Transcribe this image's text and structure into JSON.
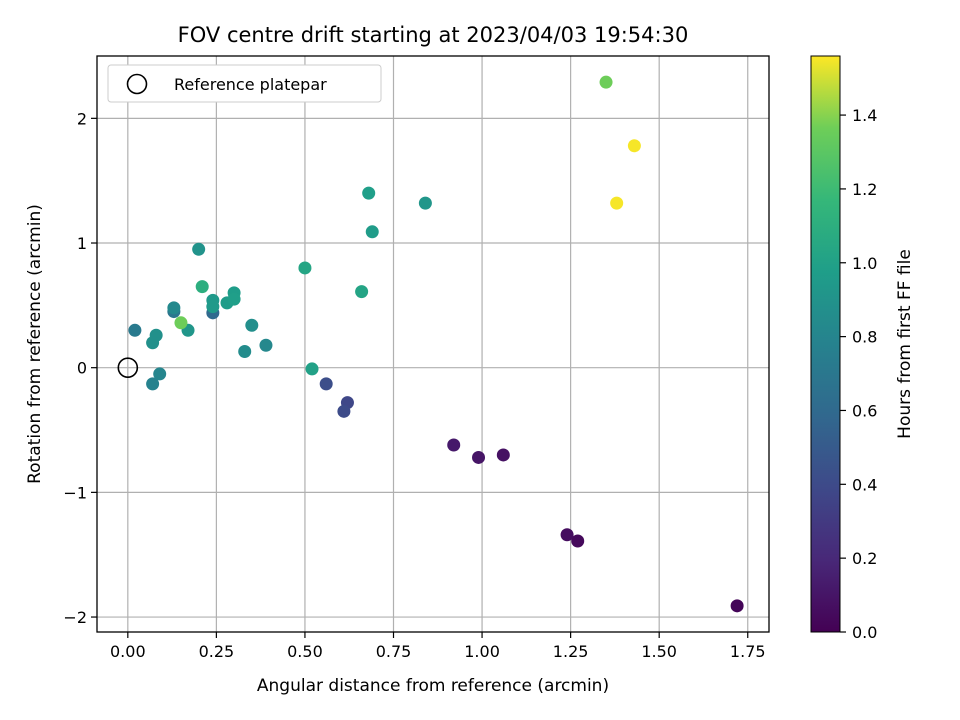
{
  "chart_data": {
    "type": "scatter",
    "title": "FOV centre drift starting at 2023/04/03 19:54:30",
    "xlabel": "Angular distance from reference (arcmin)",
    "ylabel": "Rotation from reference (arcmin)",
    "xlim": [
      -0.087,
      1.81
    ],
    "ylim": [
      -2.12,
      2.5
    ],
    "x_ticks": [
      "0.00",
      "0.25",
      "0.50",
      "0.75",
      "1.00",
      "1.25",
      "1.50",
      "1.75"
    ],
    "y_ticks": [
      "−2",
      "−1",
      "0",
      "1",
      "2"
    ],
    "grid": true,
    "legend": {
      "placement": "top-left",
      "entries": [
        "Reference platepar"
      ]
    },
    "reference_point": {
      "x": 0.0,
      "y": 0.0
    },
    "colorbar": {
      "label": "Hours from first FF file",
      "range": [
        0.0,
        1.56
      ],
      "colormap": "viridis",
      "ticks": [
        "0.0",
        "0.2",
        "0.4",
        "0.6",
        "0.8",
        "1.0",
        "1.2",
        "1.4"
      ]
    },
    "series": [
      {
        "points": [
          {
            "x": 1.72,
            "y": -1.91,
            "c": 0.02
          },
          {
            "x": 1.27,
            "y": -1.39,
            "c": 0.04
          },
          {
            "x": 1.24,
            "y": -1.34,
            "c": 0.06
          },
          {
            "x": 1.06,
            "y": -0.7,
            "c": 0.08
          },
          {
            "x": 0.99,
            "y": -0.72,
            "c": 0.1
          },
          {
            "x": 0.92,
            "y": -0.62,
            "c": 0.12
          },
          {
            "x": 0.62,
            "y": -0.28,
            "c": 0.38
          },
          {
            "x": 0.61,
            "y": -0.35,
            "c": 0.4
          },
          {
            "x": 0.56,
            "y": -0.13,
            "c": 0.42
          },
          {
            "x": 0.24,
            "y": 0.44,
            "c": 0.6
          },
          {
            "x": 0.13,
            "y": 0.45,
            "c": 0.7
          },
          {
            "x": 0.02,
            "y": 0.3,
            "c": 0.72
          },
          {
            "x": 0.07,
            "y": -0.13,
            "c": 0.78
          },
          {
            "x": 0.09,
            "y": -0.05,
            "c": 0.8
          },
          {
            "x": 0.39,
            "y": 0.18,
            "c": 0.82
          },
          {
            "x": 0.13,
            "y": 0.48,
            "c": 0.83
          },
          {
            "x": 0.33,
            "y": 0.13,
            "c": 0.85
          },
          {
            "x": 0.35,
            "y": 0.34,
            "c": 0.87
          },
          {
            "x": 0.08,
            "y": 0.26,
            "c": 0.88
          },
          {
            "x": 0.07,
            "y": 0.2,
            "c": 0.88
          },
          {
            "x": 0.2,
            "y": 0.95,
            "c": 0.9
          },
          {
            "x": 0.17,
            "y": 0.3,
            "c": 0.92
          },
          {
            "x": 0.24,
            "y": 0.54,
            "c": 0.94
          },
          {
            "x": 0.24,
            "y": 0.49,
            "c": 0.95
          },
          {
            "x": 0.28,
            "y": 0.52,
            "c": 0.96
          },
          {
            "x": 0.3,
            "y": 0.6,
            "c": 0.97
          },
          {
            "x": 0.3,
            "y": 0.55,
            "c": 0.98
          },
          {
            "x": 0.84,
            "y": 1.32,
            "c": 0.92
          },
          {
            "x": 0.69,
            "y": 1.09,
            "c": 0.96
          },
          {
            "x": 0.68,
            "y": 1.4,
            "c": 0.98
          },
          {
            "x": 0.52,
            "y": -0.01,
            "c": 1.0
          },
          {
            "x": 0.66,
            "y": 0.61,
            "c": 1.02
          },
          {
            "x": 0.5,
            "y": 0.8,
            "c": 1.03
          },
          {
            "x": 0.21,
            "y": 0.65,
            "c": 1.1
          },
          {
            "x": 0.15,
            "y": 0.36,
            "c": 1.36
          },
          {
            "x": 1.35,
            "y": 2.29,
            "c": 1.36
          },
          {
            "x": 1.43,
            "y": 1.78,
            "c": 1.55
          },
          {
            "x": 1.38,
            "y": 1.32,
            "c": 1.55
          }
        ]
      }
    ]
  }
}
